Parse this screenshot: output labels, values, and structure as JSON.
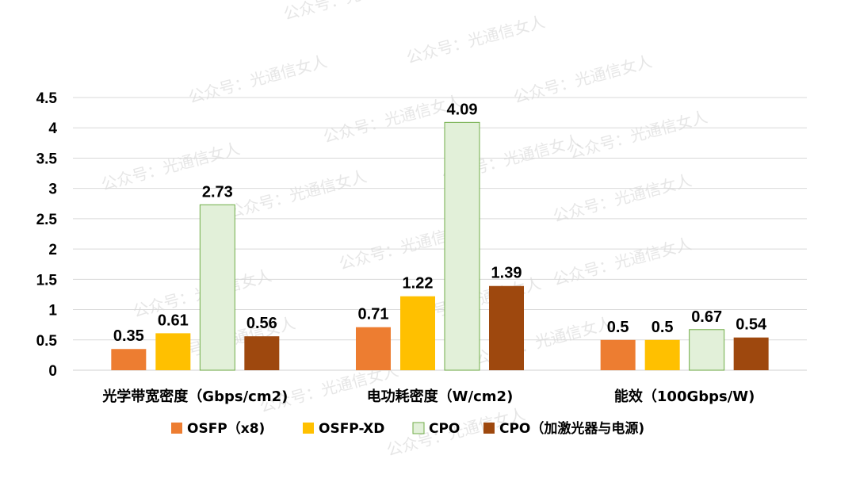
{
  "chart_data": {
    "type": "bar",
    "categories": [
      "光学带宽密度（Gbps/cm2)",
      "电功耗密度（W/cm2)",
      "能效（100Gbps/W)"
    ],
    "series": [
      {
        "name": "OSFP（x8)",
        "values": [
          0.35,
          0.71,
          0.5
        ],
        "color": "#ED7D31"
      },
      {
        "name": "OSFP-XD",
        "values": [
          0.61,
          1.22,
          0.5
        ],
        "color": "#FFC000"
      },
      {
        "name": "CPO",
        "values": [
          2.73,
          4.09,
          0.67
        ],
        "color": "#E2F0D9",
        "stroke": "#70AD47"
      },
      {
        "name": "CPO（加激光器与电源)",
        "values": [
          0.56,
          1.39,
          0.54
        ],
        "color": "#9E480E"
      }
    ],
    "yticks": [
      "0",
      "0.5",
      "1",
      "1.5",
      "2",
      "2.5",
      "3",
      "3.5",
      "4",
      "4.5"
    ],
    "ylim": [
      0,
      4.5
    ],
    "grid": true,
    "legend_position": "bottom",
    "title": "",
    "xlabel": "",
    "ylabel": ""
  },
  "watermark": "公众号：光通信女人"
}
